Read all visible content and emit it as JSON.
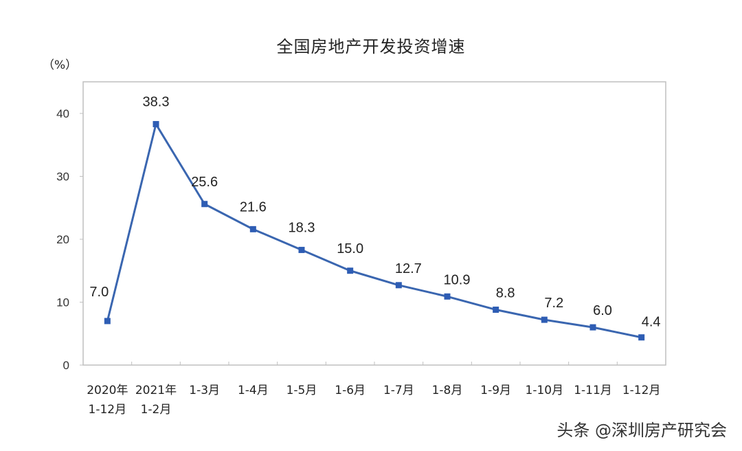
{
  "header": {
    "title": "全国房地产开发投资增速",
    "unit": "（%）"
  },
  "watermark": "头条 @深圳房产研究会",
  "colors": {
    "line": "#3a66b0",
    "marker": "#2e5db4",
    "axis": "#bfbfbf"
  },
  "chart_data": {
    "type": "line",
    "title": "全国房地产开发投资增速",
    "xlabel": "",
    "ylabel": "（%）",
    "ylim": [
      0,
      40
    ],
    "yticks": [
      0,
      10,
      20,
      30,
      40
    ],
    "grid": false,
    "legend": "none",
    "categories": [
      "2020年 1-12月",
      "2021年 1-2月",
      "1-3月",
      "1-4月",
      "1-5月",
      "1-6月",
      "1-7月",
      "1-8月",
      "1-9月",
      "1-10月",
      "1-11月",
      "1-12月"
    ],
    "category_lines": [
      [
        "2020年",
        "1-12月"
      ],
      [
        "2021年",
        "1-2月"
      ],
      [
        "1-3月"
      ],
      [
        "1-4月"
      ],
      [
        "1-5月"
      ],
      [
        "1-6月"
      ],
      [
        "1-7月"
      ],
      [
        "1-8月"
      ],
      [
        "1-9月"
      ],
      [
        "1-10月"
      ],
      [
        "1-11月"
      ],
      [
        "1-12月"
      ]
    ],
    "series": [
      {
        "name": "全国房地产开发投资增速",
        "values": [
          7.0,
          38.3,
          25.6,
          21.6,
          18.3,
          15.0,
          12.7,
          10.9,
          8.8,
          7.2,
          6.0,
          4.4
        ]
      }
    ],
    "data_labels": [
      "7.0",
      "38.3",
      "25.6",
      "21.6",
      "18.3",
      "15.0",
      "12.7",
      "10.9",
      "8.8",
      "7.2",
      "6.0",
      "4.4"
    ]
  }
}
